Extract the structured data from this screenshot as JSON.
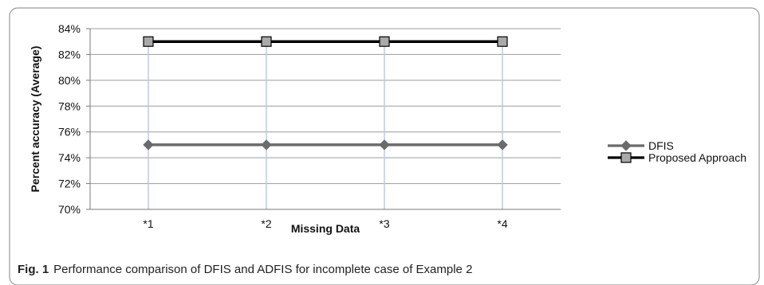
{
  "chart_data": {
    "type": "line",
    "categories": [
      "*1",
      "*2",
      "*3",
      "*4"
    ],
    "series": [
      {
        "name": "DFIS",
        "values": [
          75,
          75,
          75,
          75
        ],
        "color": "#6b6b6b",
        "marker": "diamond"
      },
      {
        "name": "Proposed Approach",
        "values": [
          83,
          83,
          83,
          83
        ],
        "color": "#000000",
        "marker": "square"
      }
    ],
    "xlabel": "Missing Data",
    "ylabel": "Percent accuracy (Average)",
    "ylim": [
      70,
      84
    ],
    "yticks": [
      "70%",
      "72%",
      "74%",
      "76%",
      "78%",
      "80%",
      "82%",
      "84%"
    ],
    "grid": "horizontal",
    "drop_lines": true,
    "legend_position": "right"
  },
  "caption": {
    "label": "Fig. 1",
    "text": "Performance comparison of DFIS and ADFIS for incomplete case of Example 2"
  }
}
